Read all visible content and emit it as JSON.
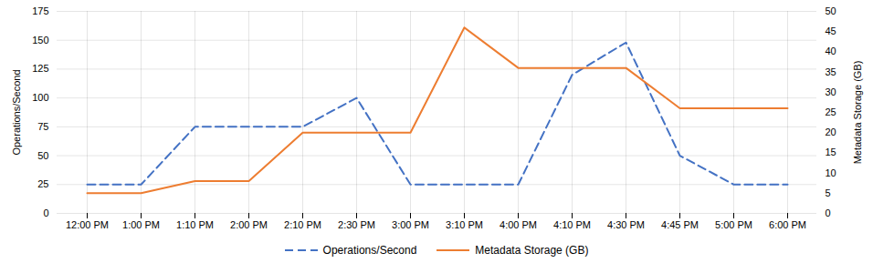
{
  "chart_data": {
    "type": "line",
    "categories": [
      "12:00 PM",
      "1:00 PM",
      "1:10 PM",
      "2:00 PM",
      "2:10 PM",
      "2:30 PM",
      "3:00 PM",
      "3:10 PM",
      "4:00 PM",
      "4:10 PM",
      "4:30 PM",
      "4:45 PM",
      "5:00 PM",
      "6:00 PM"
    ],
    "series": [
      {
        "name": "Operations/Second",
        "color": "#4472C4",
        "line_style": "dashed",
        "values": [
          25,
          25,
          75,
          75,
          75,
          100,
          25,
          25,
          25,
          120,
          148,
          50,
          25,
          25
        ]
      },
      {
        "name": "Metadata Storage (GB)",
        "color": "#ED7D31",
        "line_style": "solid",
        "axis": "y2",
        "values": [
          5,
          5,
          8,
          8,
          20,
          20,
          20,
          46,
          36,
          36,
          36,
          26,
          26,
          26
        ]
      }
    ],
    "ylabel": "Operations/Second",
    "y2label": "Metadata Storage (GB)",
    "ylim": [
      0,
      175
    ],
    "yticks": [
      0,
      25,
      50,
      75,
      100,
      125,
      150,
      175
    ],
    "y2lim": [
      0,
      50
    ],
    "y2ticks": [
      0,
      5,
      10,
      15,
      20,
      25,
      30,
      35,
      40,
      45,
      50
    ],
    "grid": true,
    "legend": "bottom"
  }
}
